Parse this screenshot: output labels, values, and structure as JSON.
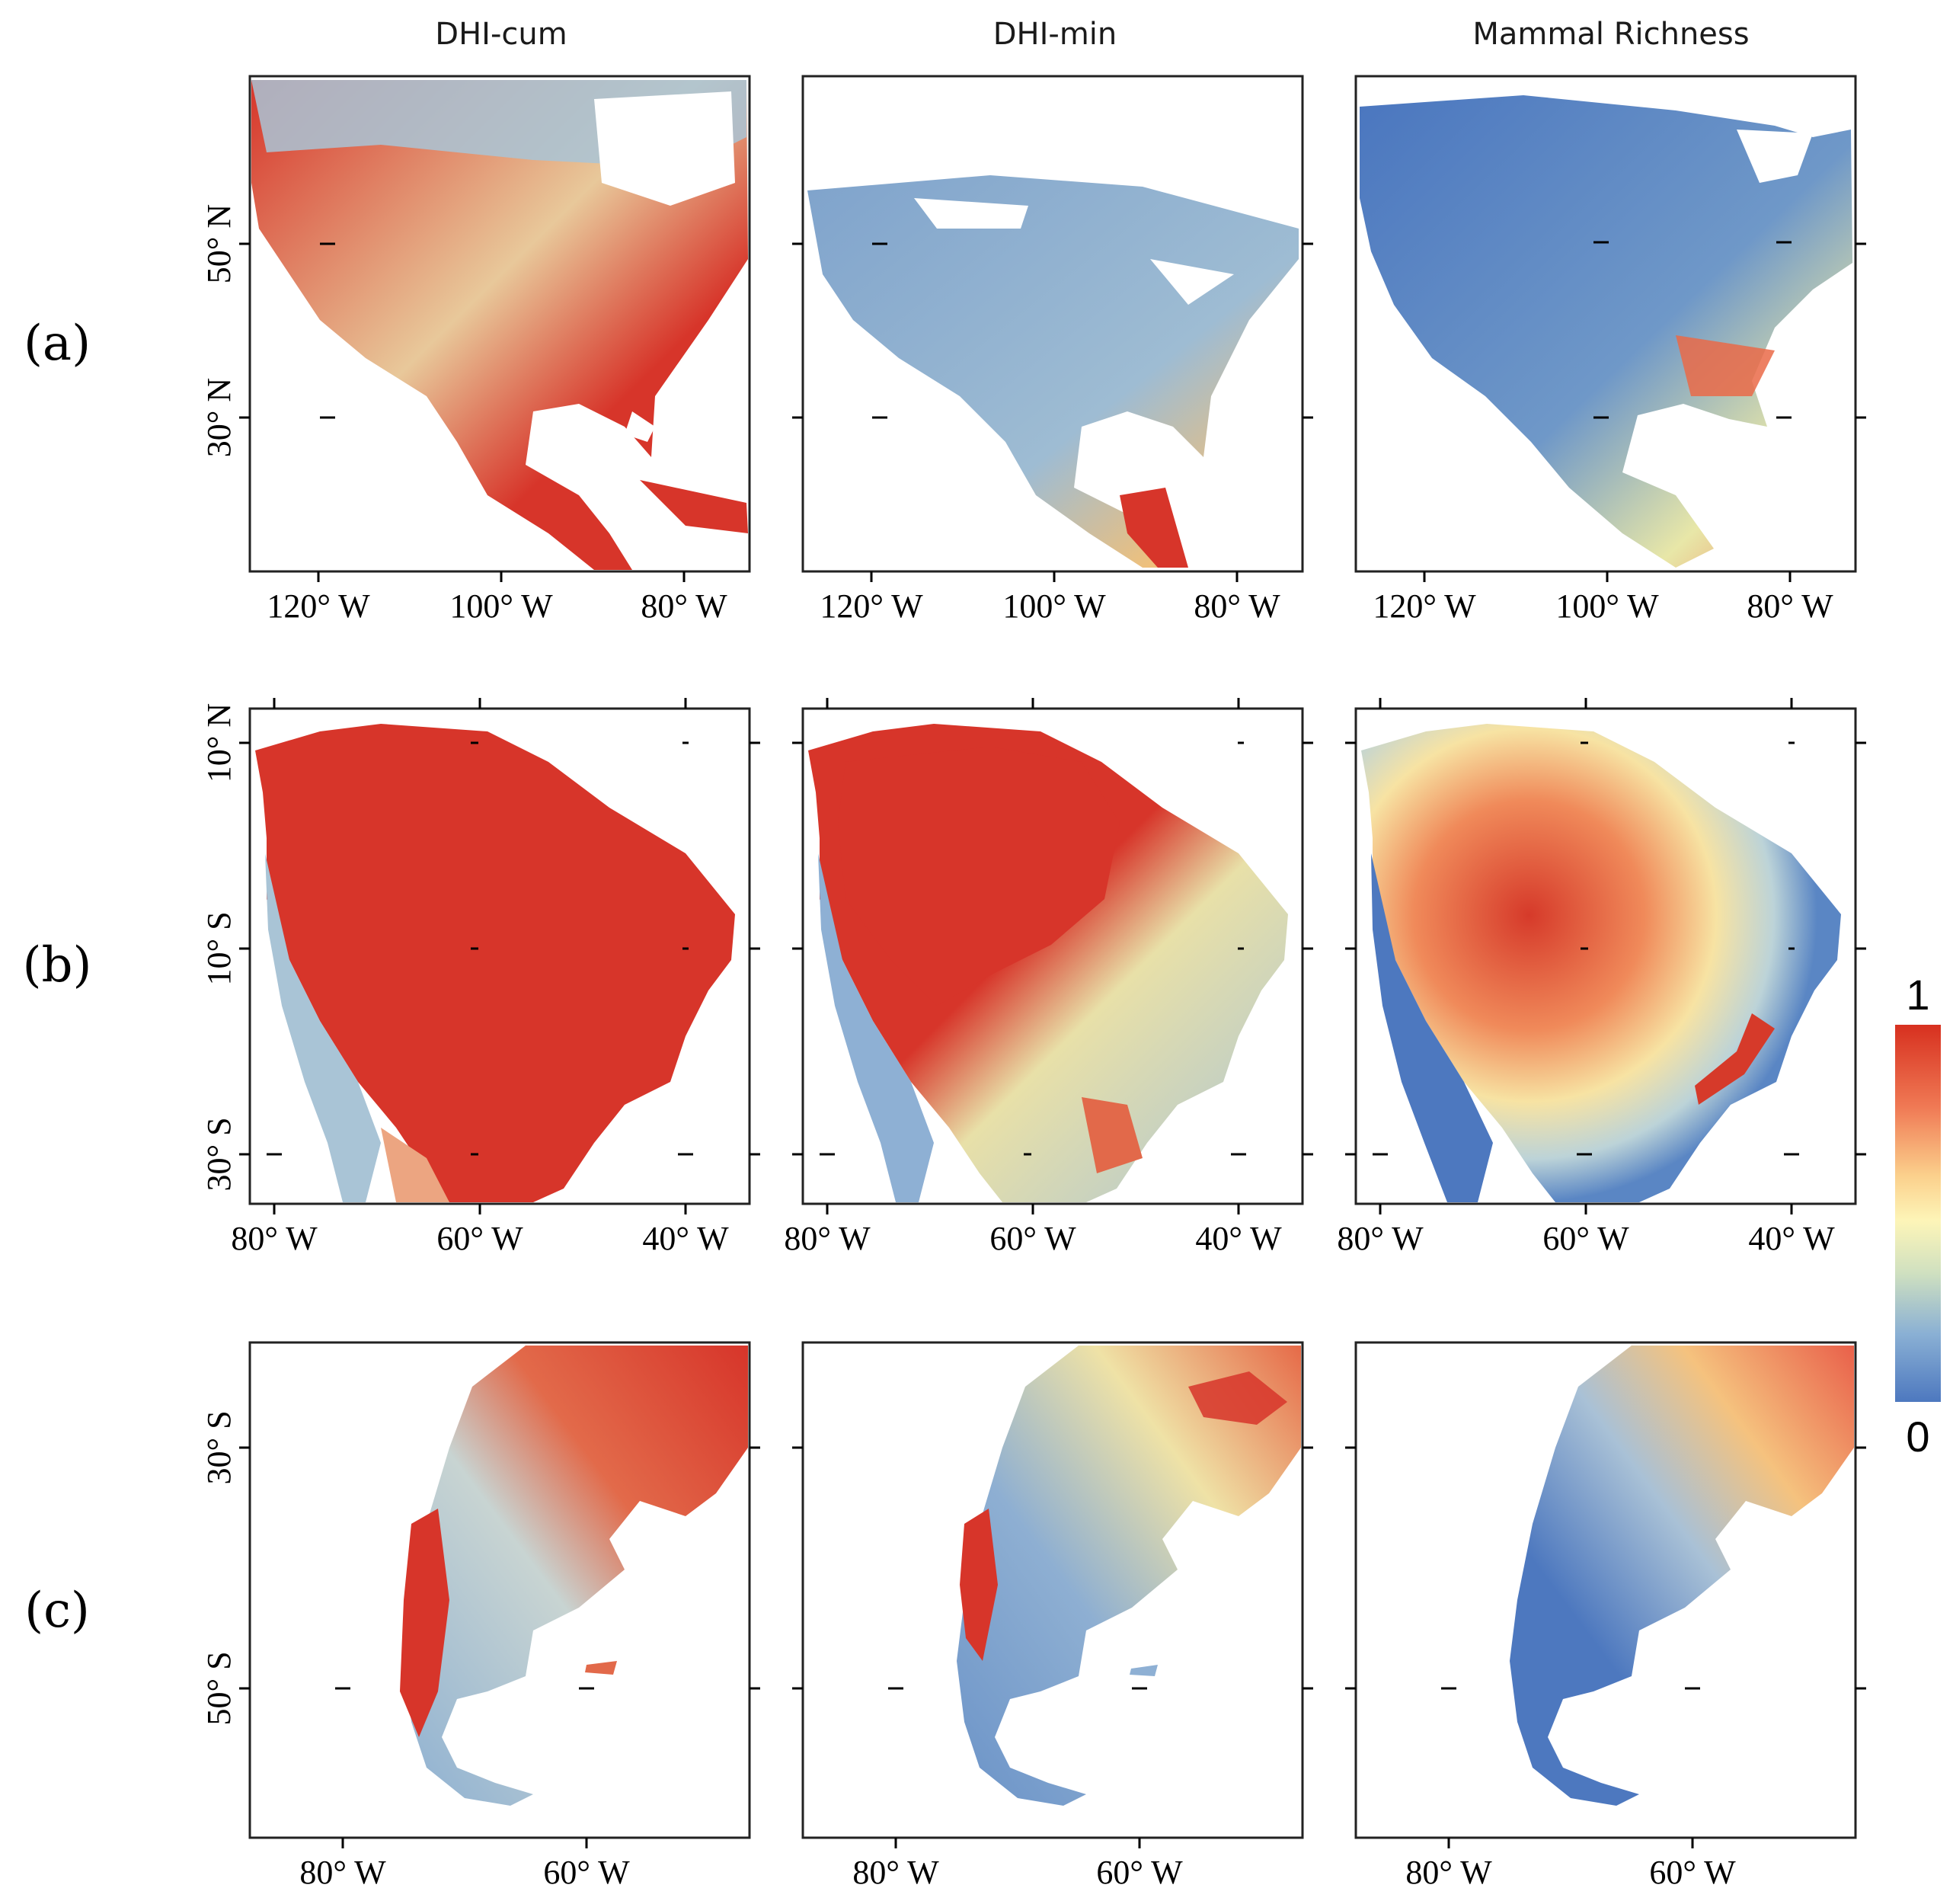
{
  "columns": [
    "DHI-cum",
    "DHI-min",
    "Mammal Richness"
  ],
  "rows": [
    {
      "label": "(a)",
      "region": "North America",
      "x_ticks": [
        "120° W",
        "100° W",
        "80° W"
      ],
      "y_ticks": [
        "50° N",
        "30° N"
      ]
    },
    {
      "label": "(b)",
      "region": "Northern South America",
      "x_ticks": [
        "80° W",
        "60° W",
        "40° W"
      ],
      "y_ticks": [
        "10° N",
        "10° S",
        "30° S"
      ]
    },
    {
      "label": "(c)",
      "region": "Southern South America",
      "x_ticks": [
        "80° W",
        "60° W"
      ],
      "y_ticks": [
        "30° S",
        "50° S"
      ]
    }
  ],
  "legend": {
    "max": "1",
    "min": "0",
    "colors": [
      "#d7301f",
      "#f4a582",
      "#fee090",
      "#e0f0c0",
      "#abd9e9",
      "#4575b4"
    ]
  }
}
